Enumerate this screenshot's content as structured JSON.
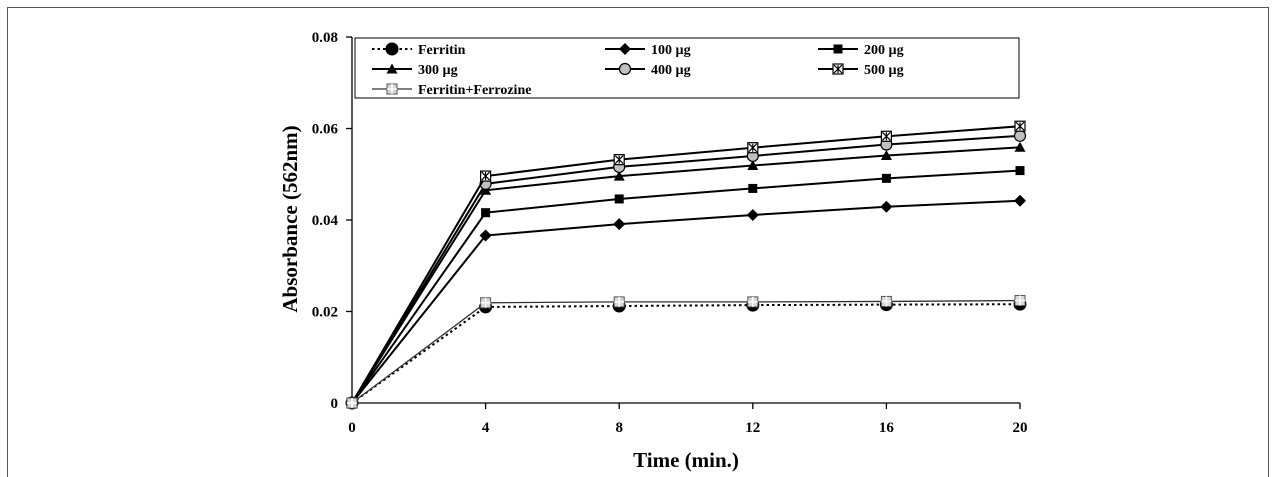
{
  "chart_data": {
    "type": "line",
    "xlabel": "Time (min.)",
    "ylabel": "Absorbance (562nm)",
    "x": [
      0,
      4,
      8,
      12,
      16,
      20
    ],
    "xlim": [
      0,
      20
    ],
    "ylim": [
      0,
      0.08
    ],
    "x_ticks": [
      "0",
      "4",
      "8",
      "12",
      "16",
      "20"
    ],
    "y_ticks": [
      "0",
      "0.02",
      "0.04",
      "0.06",
      "0.08"
    ],
    "grid": false,
    "legend_position": "top, inside plot area",
    "series": [
      {
        "name": "Ferritin",
        "marker": "circle",
        "line": "dotted",
        "values": [
          0,
          0.021,
          0.0212,
          0.0214,
          0.0215,
          0.0216
        ]
      },
      {
        "name": "100 µg",
        "marker": "diamond",
        "line": "solid",
        "values": [
          0,
          0.0366,
          0.0391,
          0.0411,
          0.0429,
          0.0442
        ]
      },
      {
        "name": "200 µg",
        "marker": "square",
        "line": "solid",
        "values": [
          0,
          0.0416,
          0.0446,
          0.0469,
          0.0491,
          0.0508
        ]
      },
      {
        "name": "300 µg",
        "marker": "triangle",
        "line": "solid",
        "values": [
          0,
          0.0465,
          0.0496,
          0.0519,
          0.0541,
          0.0559
        ]
      },
      {
        "name": "400 µg",
        "marker": "circle-gray",
        "line": "solid",
        "values": [
          0,
          0.0479,
          0.0516,
          0.054,
          0.0565,
          0.0584
        ]
      },
      {
        "name": "500 µg",
        "marker": "star-square",
        "line": "solid",
        "values": [
          0,
          0.0496,
          0.0532,
          0.0558,
          0.0583,
          0.0605
        ]
      },
      {
        "name": "Ferritin+Ferrozine",
        "marker": "cross-square",
        "line": "solid-thin",
        "values": [
          0,
          0.0219,
          0.0221,
          0.0221,
          0.0222,
          0.0224
        ]
      }
    ]
  }
}
